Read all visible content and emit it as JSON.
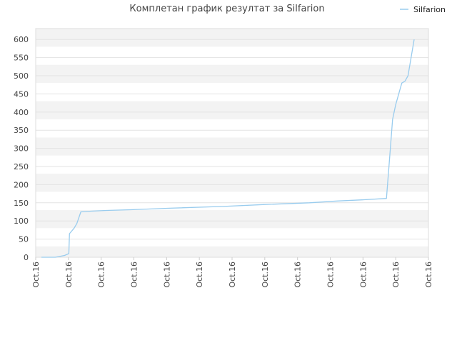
{
  "chart_data": {
    "type": "line",
    "title": "Комплетан график резултат за Silfarion",
    "xlabel": "",
    "ylabel": "",
    "ylim": [
      0,
      630
    ],
    "y_ticks": [
      0,
      50,
      100,
      150,
      200,
      250,
      300,
      350,
      400,
      450,
      500,
      550,
      600
    ],
    "x_tick_labels": [
      "Oct.16",
      "Oct.16",
      "Oct.16",
      "Oct.16",
      "Oct.16",
      "Oct.16",
      "Oct.16",
      "Oct.16",
      "Oct.16",
      "Oct.16",
      "Oct.16",
      "Oct.16",
      "Oct.16"
    ],
    "grid": true,
    "background_bands": [
      "#f3f3f3",
      "#ffffff"
    ],
    "legend_position": "top-right",
    "colors": {
      "series": "#99ccee"
    },
    "series": [
      {
        "name": "Silfarion",
        "x": [
          0,
          2.2,
          4.5,
          7.5,
          8.9,
          9.1,
          10.6,
          11.5,
          12.8,
          16.1,
          21,
          29,
          41.5,
          59,
          72,
          87,
          96,
          104,
          112,
          113,
          114,
          115,
          116,
          117,
          118,
          119,
          120,
          121
        ],
        "values": [
          0,
          0,
          0,
          5,
          10,
          65,
          80,
          93,
          125,
          127,
          129,
          131,
          135,
          140,
          145,
          150,
          155,
          158,
          162,
          270,
          380,
          420,
          450,
          480,
          485,
          500,
          550,
          600
        ]
      }
    ]
  }
}
